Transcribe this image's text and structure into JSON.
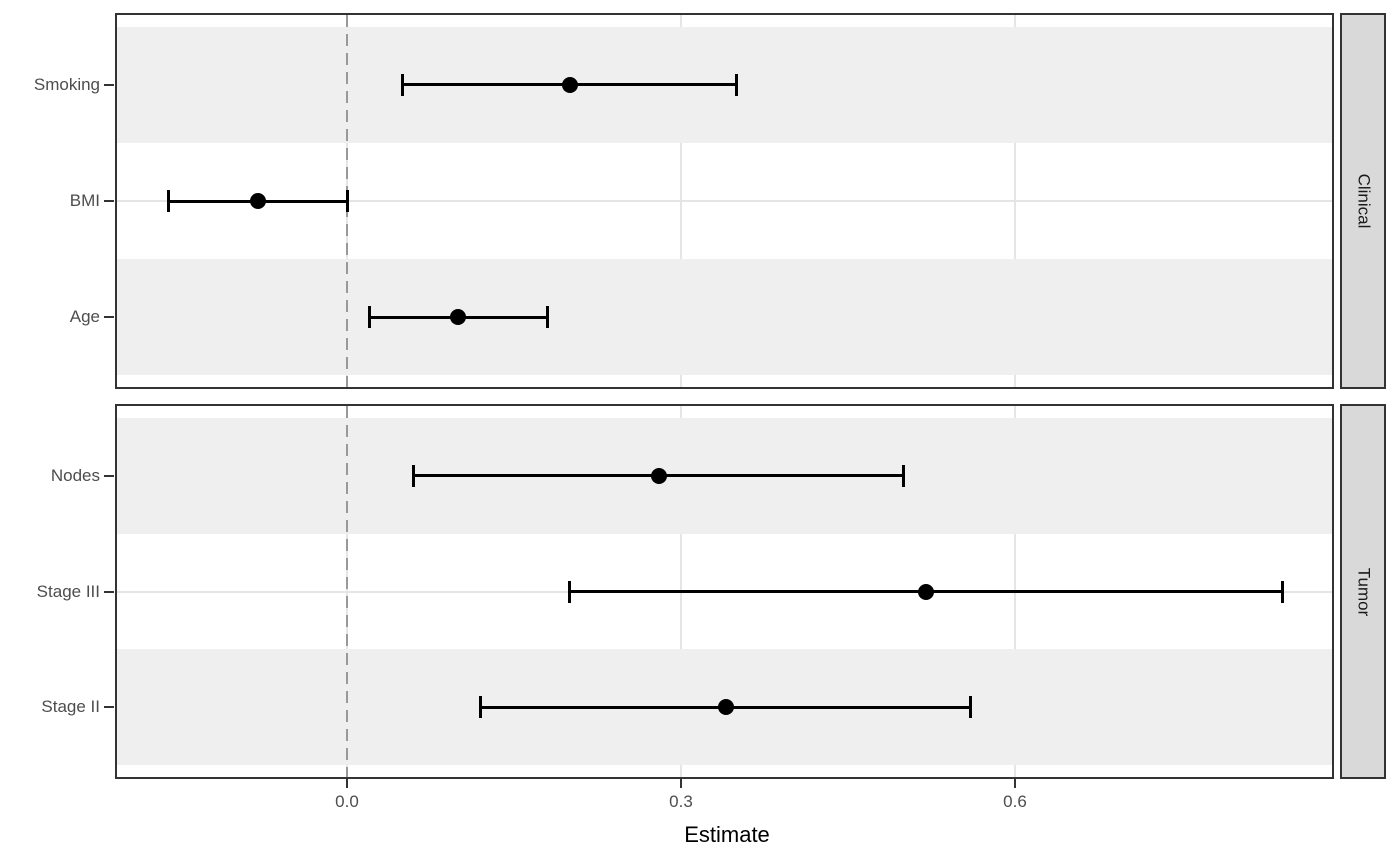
{
  "chart_data": {
    "type": "forest",
    "xlabel": "Estimate",
    "x_ticks": [
      0.0,
      0.3,
      0.6
    ],
    "x_tick_labels": [
      "0.0",
      "0.3",
      "0.6"
    ],
    "xlim": [
      -0.21,
      0.89
    ],
    "reference_line": 0.0,
    "grid": "major-vertical-and-row-lines",
    "legend_position": "none",
    "facets": [
      {
        "label": "Clinical",
        "rows": [
          {
            "label": "Smoking",
            "estimate": 0.2,
            "ci_low": 0.05,
            "ci_high": 0.35
          },
          {
            "label": "BMI",
            "estimate": -0.08,
            "ci_low": -0.16,
            "ci_high": 0.0
          },
          {
            "label": "Age",
            "estimate": 0.1,
            "ci_low": 0.02,
            "ci_high": 0.18
          }
        ]
      },
      {
        "label": "Tumor",
        "rows": [
          {
            "label": "Nodes",
            "estimate": 0.28,
            "ci_low": 0.06,
            "ci_high": 0.5
          },
          {
            "label": "Stage III",
            "estimate": 0.52,
            "ci_low": 0.2,
            "ci_high": 0.84
          },
          {
            "label": "Stage II",
            "estimate": 0.34,
            "ci_low": 0.12,
            "ci_high": 0.56
          }
        ]
      }
    ],
    "colors": {
      "point_and_interval": "#000000",
      "row_stripe": "#efefef",
      "gridline": "#e5e5e5",
      "strip_background": "#d9d9d9",
      "panel_border": "#333333",
      "axis_text": "#4d4d4d",
      "reference_line": "#999999"
    }
  }
}
